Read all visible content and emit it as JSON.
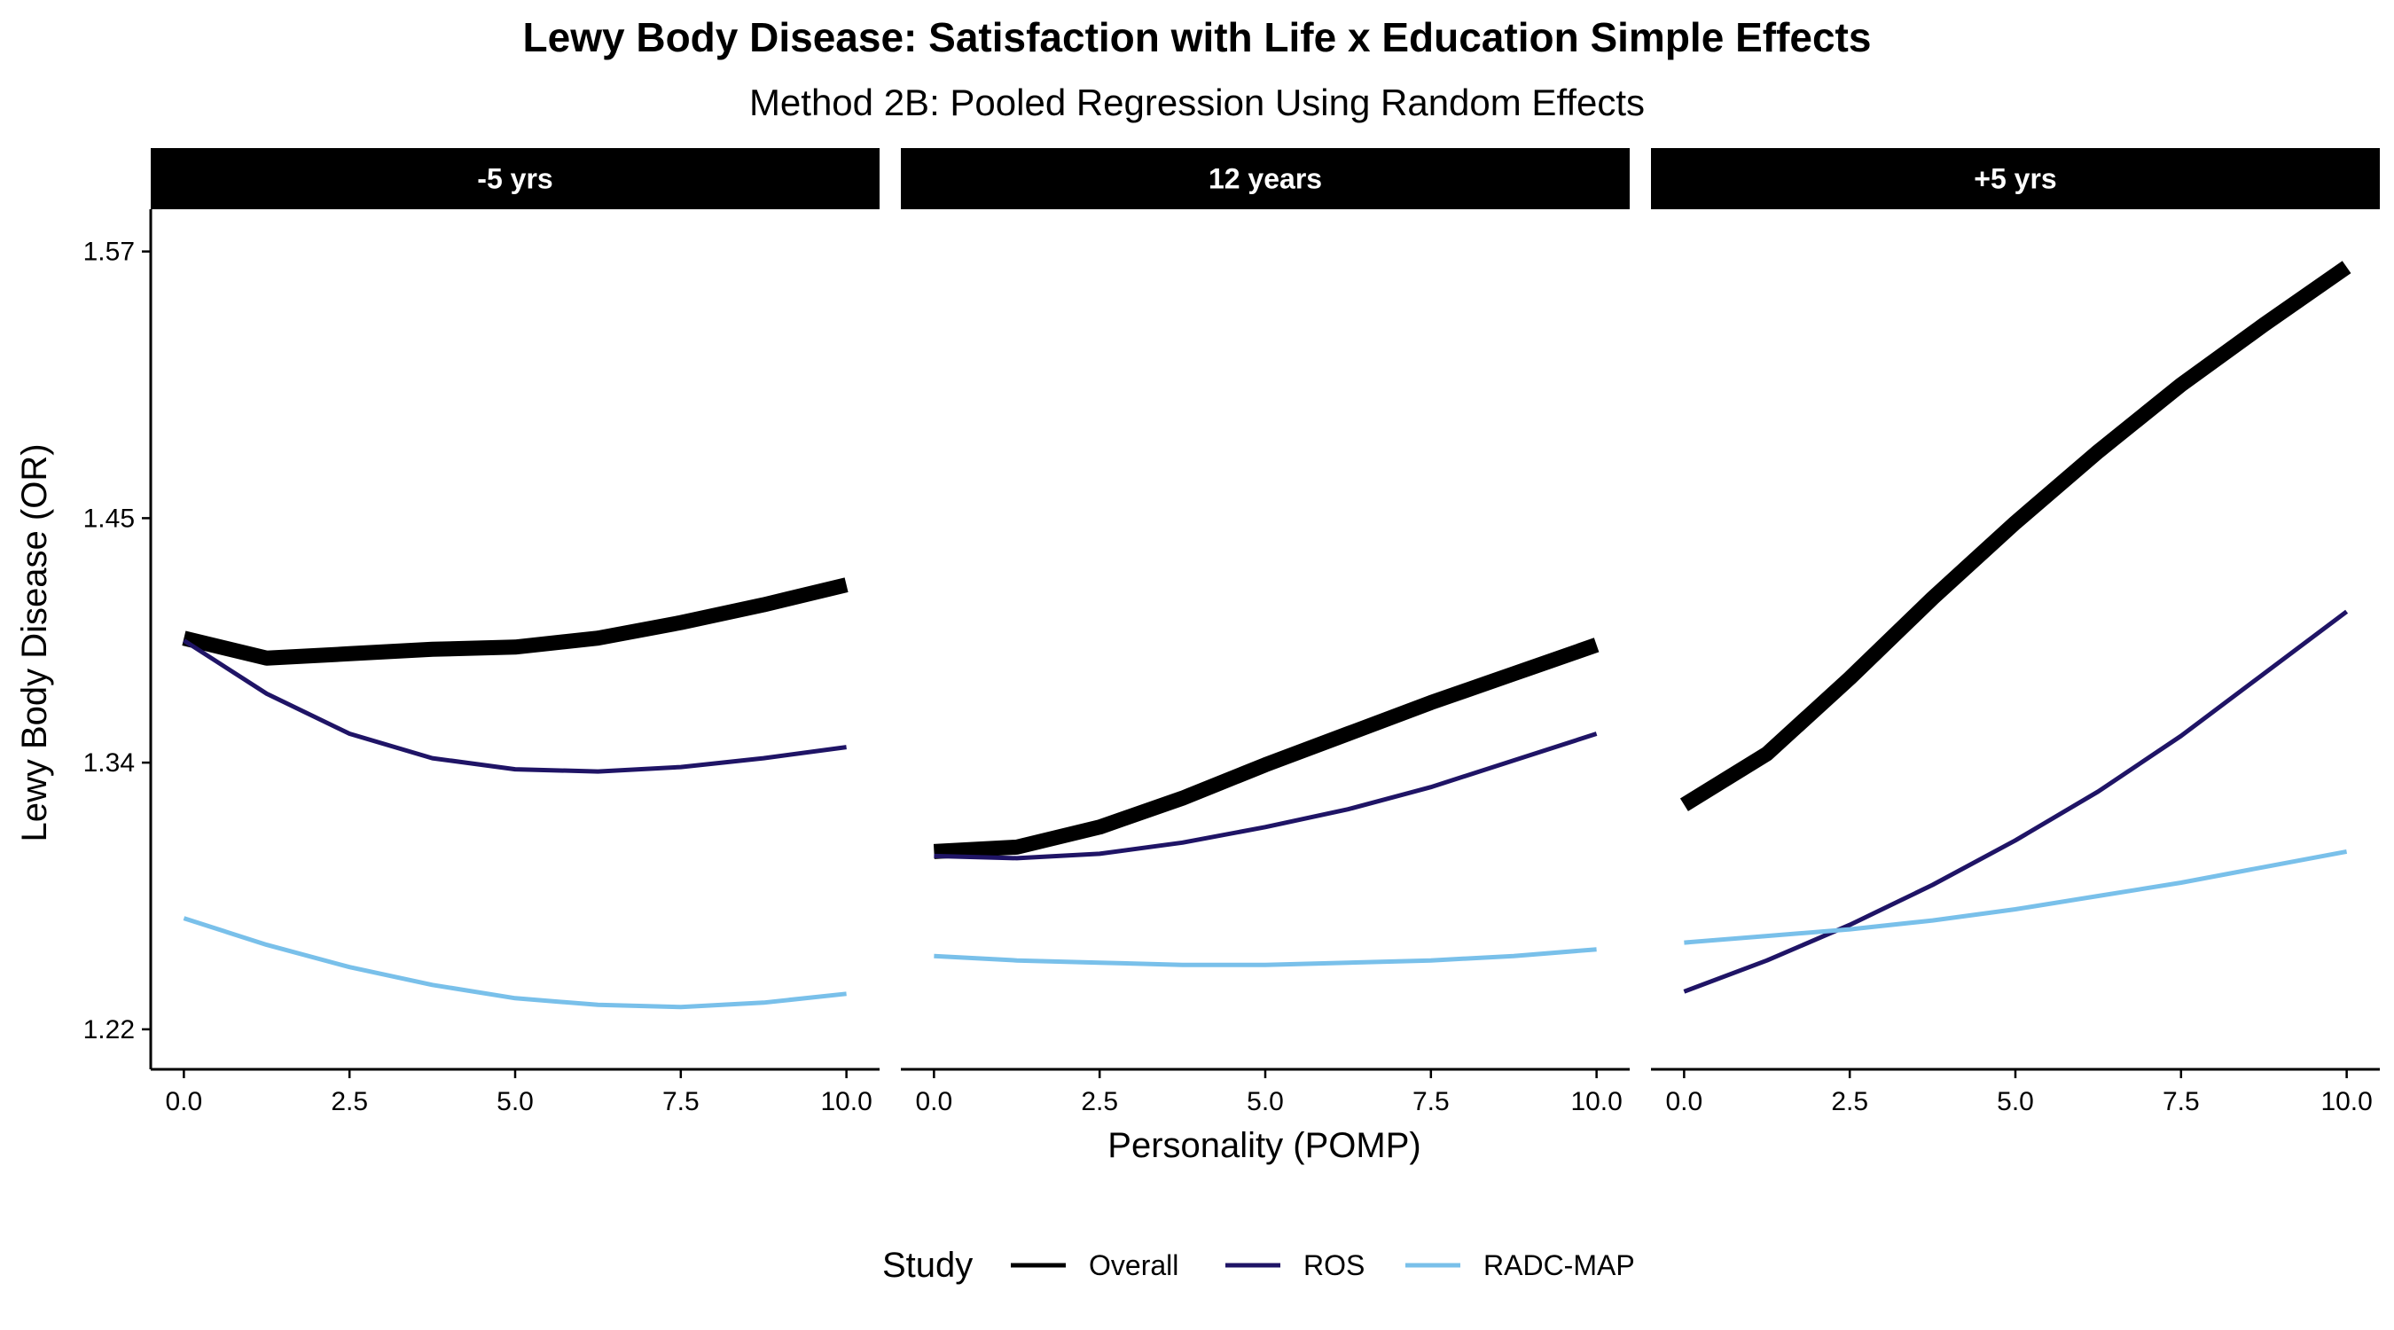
{
  "chart_data": {
    "type": "line",
    "title": "Lewy Body Disease: Satisfaction with Life x Education Simple Effects",
    "subtitle": "Method 2B: Pooled Regression Using Random Effects",
    "xlabel": "Personality (POMP)",
    "ylabel": "Lewy Body Disease (OR)",
    "xlim": [
      -0.5,
      10.5
    ],
    "ylim": [
      1.202,
      1.589
    ],
    "x_ticks": [
      0,
      2.5,
      5,
      7.5,
      10
    ],
    "x_tick_labels": [
      "0.0",
      "2.5",
      "5.0",
      "7.5",
      "10.0"
    ],
    "y_ticks": [
      1.22,
      1.34,
      1.45,
      1.57
    ],
    "y_tick_labels": [
      "1.22",
      "1.34",
      "1.45",
      "1.57"
    ],
    "grid": false,
    "legend": {
      "title": "Study",
      "position": "bottom"
    },
    "series_styles": [
      {
        "name": "Overall",
        "color": "#000000",
        "width": "thick"
      },
      {
        "name": "ROS",
        "color": "#1f1466",
        "width": "normal"
      },
      {
        "name": "RADC-MAP",
        "color": "#79c0ea",
        "width": "normal"
      }
    ],
    "panels": [
      {
        "label": "-5 yrs",
        "x": [
          0,
          1.25,
          2.5,
          3.75,
          5,
          6.25,
          7.5,
          8.75,
          10
        ],
        "series": [
          {
            "name": "Overall",
            "values": [
              1.396,
              1.387,
              1.389,
              1.391,
              1.392,
              1.396,
              1.403,
              1.411,
              1.42
            ]
          },
          {
            "name": "ROS",
            "values": [
              1.395,
              1.371,
              1.353,
              1.342,
              1.337,
              1.336,
              1.338,
              1.342,
              1.347
            ]
          },
          {
            "name": "RADC-MAP",
            "values": [
              1.27,
              1.258,
              1.248,
              1.24,
              1.234,
              1.231,
              1.23,
              1.232,
              1.236
            ]
          }
        ]
      },
      {
        "label": "12 years",
        "x": [
          0,
          1.25,
          2.5,
          3.75,
          5,
          6.25,
          7.5,
          8.75,
          10
        ],
        "series": [
          {
            "name": "Overall",
            "values": [
              1.3,
              1.302,
              1.311,
              1.324,
              1.339,
              1.353,
              1.367,
              1.38,
              1.393
            ]
          },
          {
            "name": "ROS",
            "values": [
              1.298,
              1.297,
              1.299,
              1.304,
              1.311,
              1.319,
              1.329,
              1.341,
              1.353
            ]
          },
          {
            "name": "RADC-MAP",
            "values": [
              1.253,
              1.251,
              1.25,
              1.249,
              1.249,
              1.25,
              1.251,
              1.253,
              1.256
            ]
          }
        ]
      },
      {
        "label": "+5 yrs",
        "x": [
          0,
          1.25,
          2.5,
          3.75,
          5,
          6.25,
          7.5,
          8.75,
          10
        ],
        "series": [
          {
            "name": "Overall",
            "values": [
              1.321,
              1.344,
              1.378,
              1.414,
              1.448,
              1.48,
              1.51,
              1.537,
              1.563
            ]
          },
          {
            "name": "ROS",
            "values": [
              1.237,
              1.251,
              1.267,
              1.285,
              1.305,
              1.327,
              1.352,
              1.38,
              1.408
            ]
          },
          {
            "name": "RADC-MAP",
            "values": [
              1.259,
              1.262,
              1.265,
              1.269,
              1.274,
              1.28,
              1.286,
              1.293,
              1.3
            ]
          }
        ]
      }
    ]
  }
}
